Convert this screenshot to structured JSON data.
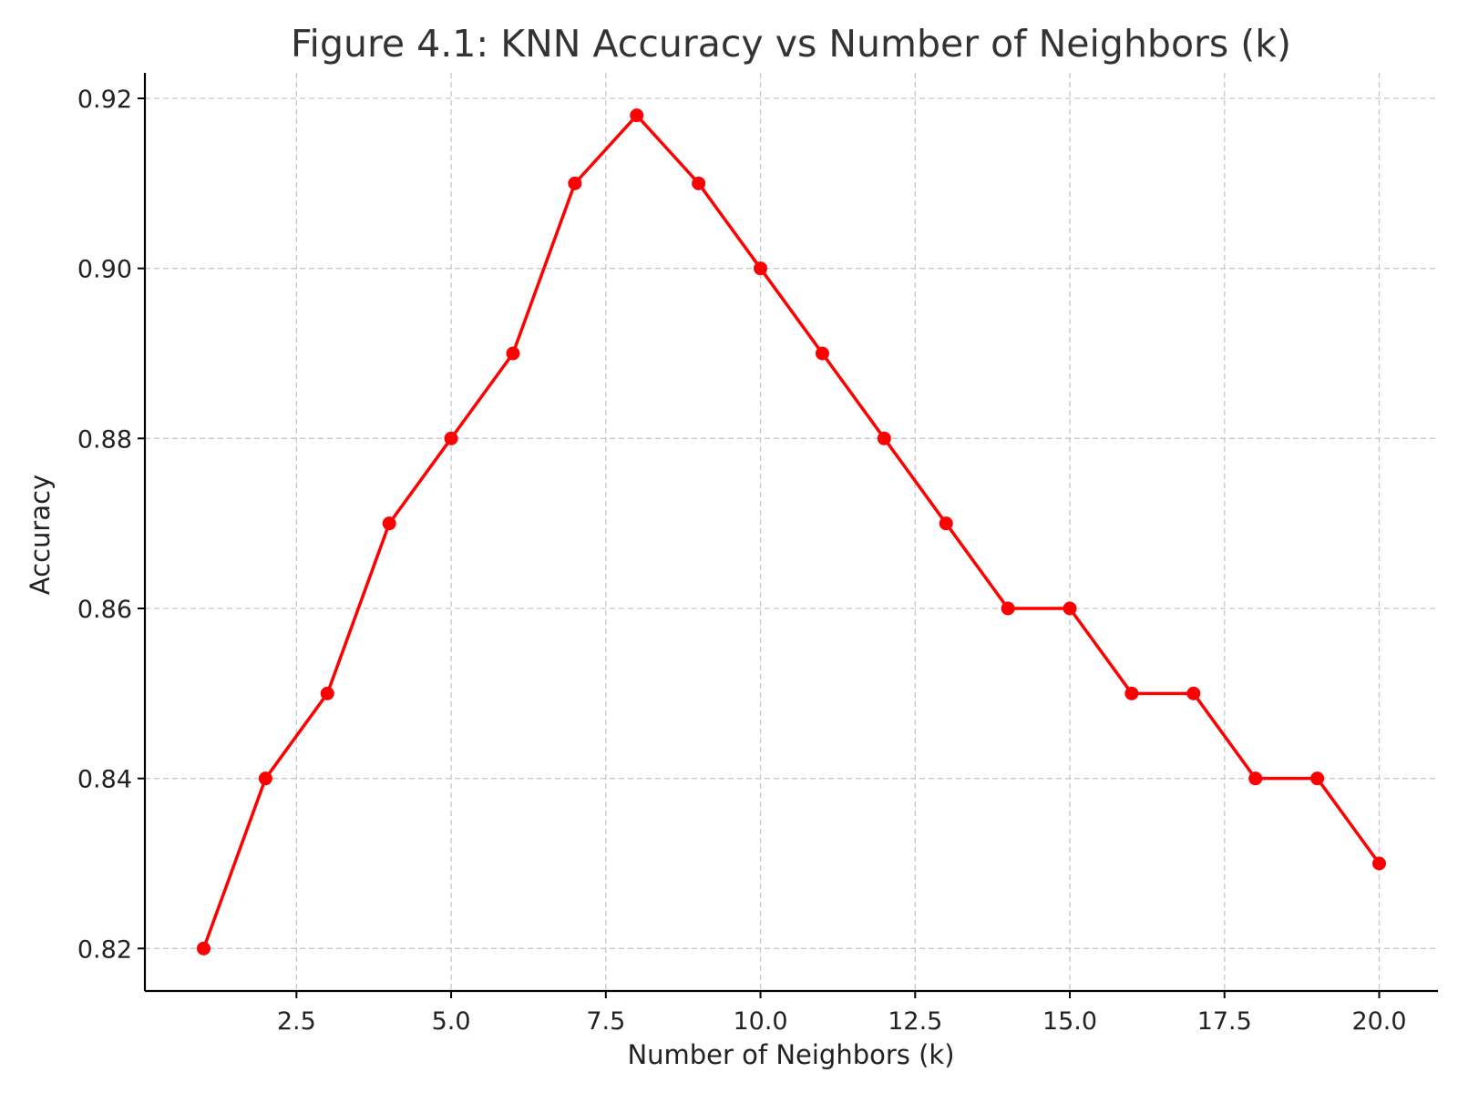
{
  "chart_data": {
    "type": "line",
    "title": "Figure 4.1: KNN Accuracy vs Number of Neighbors (k)",
    "xlabel": "Number of Neighbors (k)",
    "ylabel": "Accuracy",
    "xlim": [
      0.05,
      20.95
    ],
    "ylim": [
      0.815,
      0.923
    ],
    "xticks": [
      2.5,
      5.0,
      7.5,
      10.0,
      12.5,
      15.0,
      17.5,
      20.0
    ],
    "xtick_labels": [
      "2.5",
      "5.0",
      "7.5",
      "10.0",
      "12.5",
      "15.0",
      "17.5",
      "20.0"
    ],
    "yticks": [
      0.82,
      0.84,
      0.86,
      0.88,
      0.9,
      0.92
    ],
    "ytick_labels": [
      "0.82",
      "0.84",
      "0.86",
      "0.88",
      "0.90",
      "0.92"
    ],
    "grid": true,
    "series": [
      {
        "color": "#ff0000",
        "marker": "circle",
        "x": [
          1,
          2,
          3,
          4,
          5,
          6,
          7,
          8,
          9,
          10,
          11,
          12,
          13,
          14,
          15,
          16,
          17,
          18,
          19,
          20
        ],
        "y": [
          0.82,
          0.84,
          0.85,
          0.87,
          0.88,
          0.89,
          0.91,
          0.918,
          0.91,
          0.9,
          0.89,
          0.88,
          0.87,
          0.86,
          0.86,
          0.85,
          0.85,
          0.84,
          0.84,
          0.83
        ]
      }
    ]
  }
}
